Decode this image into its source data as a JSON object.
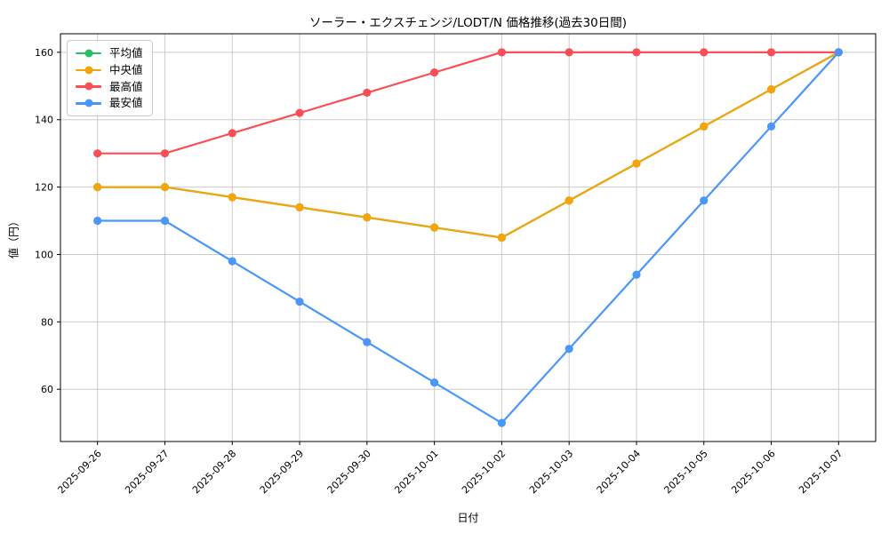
{
  "figure": {
    "title": "ソーラー・エクスチェンジ/LODT/N 価格推移(過去30日間)",
    "xlabel": "日付",
    "ylabel": "値（円）"
  },
  "chart_data": {
    "type": "line",
    "title": "ソーラー・エクスチェンジ/LODT/N 価格推移(過去30日間)",
    "xlabel": "日付",
    "ylabel": "値（円）",
    "categories": [
      "2025-09-26",
      "2025-09-27",
      "2025-09-28",
      "2025-09-29",
      "2025-09-30",
      "2025-10-01",
      "2025-10-02",
      "2025-10-03",
      "2025-10-04",
      "2025-10-05",
      "2025-10-06",
      "2025-10-07"
    ],
    "series": [
      {
        "name": "平均値",
        "color": "#2bbd63",
        "values": [
          120,
          120,
          117,
          114,
          111,
          108,
          105,
          116,
          127,
          138,
          149,
          160
        ],
        "visible_in_plot": "hidden beneath 中央値 (identical values)"
      },
      {
        "name": "中央値",
        "color": "#f5a50b",
        "values": [
          120,
          120,
          117,
          114,
          111,
          108,
          105,
          116,
          127,
          138,
          149,
          160
        ]
      },
      {
        "name": "最高値",
        "color": "#f94f55",
        "values": [
          130,
          130,
          136,
          142,
          148,
          154,
          160,
          160,
          160,
          160,
          160,
          160
        ]
      },
      {
        "name": "最安値",
        "color": "#4b96f9",
        "values": [
          110,
          110,
          98,
          86,
          74,
          62,
          50,
          72,
          94,
          116,
          138,
          160
        ]
      }
    ],
    "yticks": [
      60,
      80,
      100,
      120,
      140,
      160
    ],
    "ylim": [
      44.5,
      165.5
    ],
    "grid": true,
    "grid_color": "#cccccc",
    "legend_position": "upper left",
    "x_tick_rotation_deg": 45
  }
}
